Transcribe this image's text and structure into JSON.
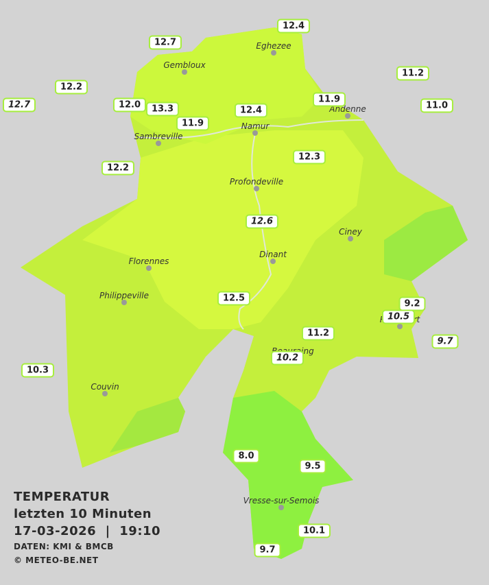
{
  "stations": [
    {
      "label": "12.4"
    },
    {
      "label": "12.7"
    },
    {
      "label": "12.2"
    },
    {
      "label": "12.7",
      "italic": true
    },
    {
      "label": "12.0"
    },
    {
      "label": "13.3"
    },
    {
      "label": "11.9"
    },
    {
      "label": "12.4"
    },
    {
      "label": "11.9"
    },
    {
      "label": "11.2"
    },
    {
      "label": "11.0"
    },
    {
      "label": "12.2"
    },
    {
      "label": "12.3"
    },
    {
      "label": "12.6",
      "italic": true
    },
    {
      "label": "12.5"
    },
    {
      "label": "9.2"
    },
    {
      "label": "10.5",
      "italic": true
    },
    {
      "label": "9.7",
      "italic": true
    },
    {
      "label": "11.2"
    },
    {
      "label": "10.2",
      "italic": true
    },
    {
      "label": "10.3"
    },
    {
      "label": "8.0"
    },
    {
      "label": "9.5"
    },
    {
      "label": "10.1"
    },
    {
      "label": "9.7"
    }
  ],
  "cities": [
    "Eghezee",
    "Gembloux",
    "Andenne",
    "Namur",
    "Sambreville",
    "Profondeville",
    "Ciney",
    "Dinant",
    "Florennes",
    "Philippeville",
    "Rochefort",
    "Beauraing",
    "Couvin",
    "Vresse-sur-Semois"
  ],
  "legend": {
    "title": "TEMPERATUR",
    "subtitle": "letzten 10 Minuten",
    "datetime": "17-03-2026  |  19:10",
    "source": "DATEN: KMI & BMCB",
    "copyright": "© METEO-BE.NET"
  }
}
